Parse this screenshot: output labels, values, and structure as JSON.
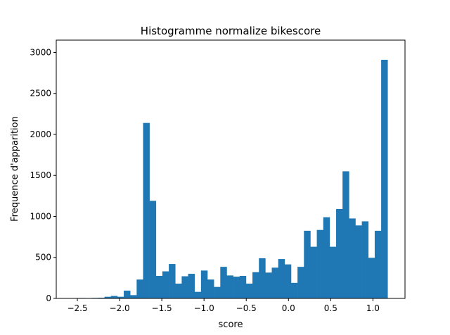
{
  "chart_data": {
    "type": "bar",
    "title": "Histogramme normalize bikescore",
    "xlabel": "score",
    "ylabel": "Frequence d'apparition",
    "xlim": [
      -2.75,
      1.38
    ],
    "ylim": [
      0,
      3150
    ],
    "xticks": [
      {
        "value": -2.5,
        "label": "−2.5"
      },
      {
        "value": -2.0,
        "label": "−2.0"
      },
      {
        "value": -1.5,
        "label": "−1.5"
      },
      {
        "value": -1.0,
        "label": "−1.0"
      },
      {
        "value": -0.5,
        "label": "−0.5"
      },
      {
        "value": 0.0,
        "label": "0.0"
      },
      {
        "value": 0.5,
        "label": "0.5"
      },
      {
        "value": 1.0,
        "label": "1.0"
      }
    ],
    "yticks": [
      {
        "value": 0,
        "label": "0"
      },
      {
        "value": 500,
        "label": "500"
      },
      {
        "value": 1000,
        "label": "1000"
      },
      {
        "value": 1500,
        "label": "1500"
      },
      {
        "value": 2000,
        "label": "2000"
      },
      {
        "value": 2500,
        "label": "2500"
      },
      {
        "value": 3000,
        "label": "3000"
      }
    ],
    "bin_start": -2.56,
    "bin_width": 0.0762,
    "values": [
      2,
      5,
      3,
      6,
      8,
      20,
      30,
      20,
      95,
      40,
      230,
      2140,
      1190,
      275,
      330,
      420,
      180,
      270,
      300,
      80,
      340,
      230,
      140,
      385,
      280,
      265,
      275,
      180,
      320,
      490,
      315,
      375,
      480,
      415,
      190,
      385,
      825,
      630,
      835,
      990,
      630,
      1090,
      1550,
      975,
      890,
      940,
      495,
      825,
      2910
    ],
    "bar_color": "#1f77b4",
    "grid": false
  }
}
